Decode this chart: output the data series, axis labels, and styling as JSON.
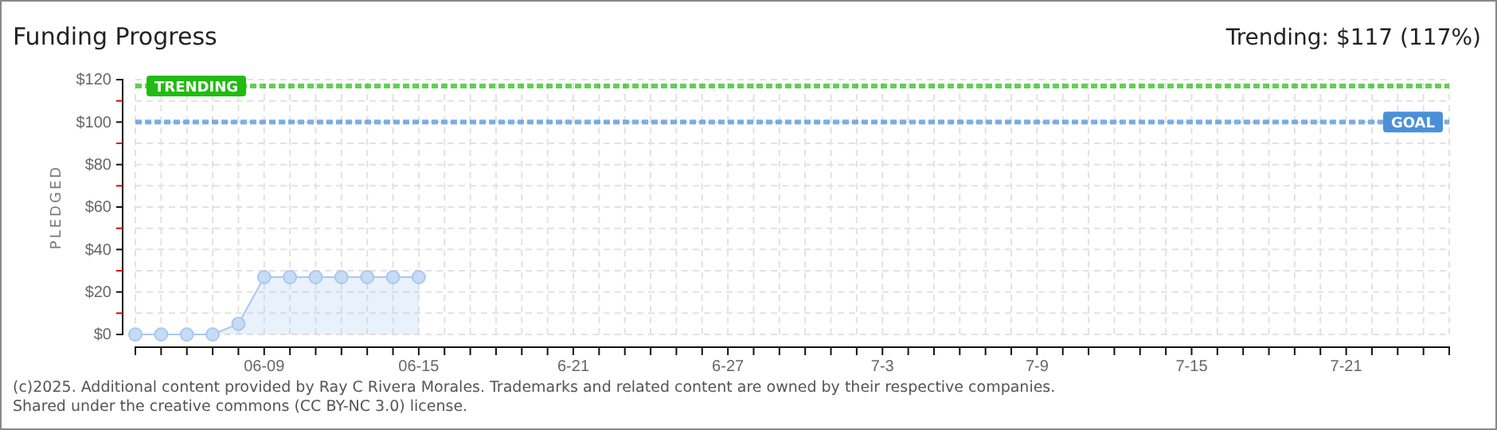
{
  "chart_data": {
    "type": "area",
    "title": "Funding Progress",
    "subtitle": "Trending: $117 (117%)",
    "ylabel": "PLEDGED",
    "x": [
      "--06-04",
      "--06-05",
      "--06-06",
      "--06-07",
      "--06-08",
      "--06-09",
      "--06-10",
      "--06-11",
      "--06-12",
      "--06-13",
      "--06-14",
      "--06-15"
    ],
    "series": [
      {
        "color": "#a9c8ee",
        "values": [
          0,
          0,
          0,
          0,
          5,
          27,
          27,
          27,
          27,
          27,
          27,
          27
        ]
      }
    ],
    "xlim": [
      "--06-04",
      "--07-25"
    ],
    "xticks": [
      {
        "value": "--06-04",
        "label": null
      },
      {
        "value": "--06-05",
        "label": null
      },
      {
        "value": "--06-06",
        "label": null
      },
      {
        "value": "--06-07",
        "label": null
      },
      {
        "value": "--06-08",
        "label": null
      },
      {
        "value": "--06-09",
        "label": "06-09"
      },
      {
        "value": "--06-10",
        "label": null
      },
      {
        "value": "--06-11",
        "label": null
      },
      {
        "value": "--06-12",
        "label": null
      },
      {
        "value": "--06-13",
        "label": null
      },
      {
        "value": "--06-14",
        "label": null
      },
      {
        "value": "--06-15",
        "label": "06-15"
      },
      {
        "value": "--06-16",
        "label": null
      },
      {
        "value": "--06-17",
        "label": null
      },
      {
        "value": "--06-18",
        "label": null
      },
      {
        "value": "--06-19",
        "label": null
      },
      {
        "value": "--06-20",
        "label": null
      },
      {
        "value": "--06-21",
        "label": "6-21"
      },
      {
        "value": "--06-22",
        "label": null
      },
      {
        "value": "--06-23",
        "label": null
      },
      {
        "value": "--06-24",
        "label": null
      },
      {
        "value": "--06-25",
        "label": null
      },
      {
        "value": "--06-26",
        "label": null
      },
      {
        "value": "--06-27",
        "label": "6-27"
      },
      {
        "value": "--06-28",
        "label": null
      },
      {
        "value": "--06-29",
        "label": null
      },
      {
        "value": "--06-30",
        "label": null
      },
      {
        "value": "--07-01",
        "label": null
      },
      {
        "value": "--07-02",
        "label": null
      },
      {
        "value": "--07-03",
        "label": "7-3"
      },
      {
        "value": "--07-04",
        "label": null
      },
      {
        "value": "--07-05",
        "label": null
      },
      {
        "value": "--07-06",
        "label": null
      },
      {
        "value": "--07-07",
        "label": null
      },
      {
        "value": "--07-08",
        "label": null
      },
      {
        "value": "--07-09",
        "label": "7-9"
      },
      {
        "value": "--07-10",
        "label": null
      },
      {
        "value": "--07-11",
        "label": null
      },
      {
        "value": "--07-12",
        "label": null
      },
      {
        "value": "--07-13",
        "label": null
      },
      {
        "value": "--07-14",
        "label": null
      },
      {
        "value": "--07-15",
        "label": "7-15"
      },
      {
        "value": "--07-16",
        "label": null
      },
      {
        "value": "--07-17",
        "label": null
      },
      {
        "value": "--07-18",
        "label": null
      },
      {
        "value": "--07-19",
        "label": null
      },
      {
        "value": "--07-20",
        "label": null
      },
      {
        "value": "--07-21",
        "label": "7-21"
      },
      {
        "value": "--07-22",
        "label": null
      },
      {
        "value": "--07-23",
        "label": null
      },
      {
        "value": "--07-24",
        "label": null
      },
      {
        "value": "--07-25",
        "label": null
      }
    ],
    "ylim": [
      0,
      120
    ],
    "yticks": [
      {
        "value": 0,
        "label": "$0"
      },
      {
        "value": 10,
        "label": null
      },
      {
        "value": 20,
        "label": "$20"
      },
      {
        "value": 30,
        "label": null
      },
      {
        "value": 40,
        "label": "$40"
      },
      {
        "value": 50,
        "label": null
      },
      {
        "value": 60,
        "label": "$60"
      },
      {
        "value": 70,
        "label": null
      },
      {
        "value": 80,
        "label": "$80"
      },
      {
        "value": 90,
        "label": null
      },
      {
        "value": 100,
        "label": "$100"
      },
      {
        "value": 110,
        "label": null
      },
      {
        "value": 120,
        "label": "$120"
      }
    ],
    "ref_lines": [
      {
        "axis": "y",
        "value": 117,
        "label": "TRENDING",
        "color": "#22bb11",
        "line_style": "dashed"
      },
      {
        "axis": "y",
        "value": 100,
        "label": "GOAL",
        "color": "#4a90d9",
        "line_style": "dashed"
      }
    ],
    "grid": true,
    "marker": "circle",
    "annotations": [
      "(c)2025. Additional content provided by Ray C Rivera Morales. Trademarks and related content are owned by their respective companies.",
      "Shared under the creative commons (CC BY-NC 3.0) license."
    ]
  }
}
